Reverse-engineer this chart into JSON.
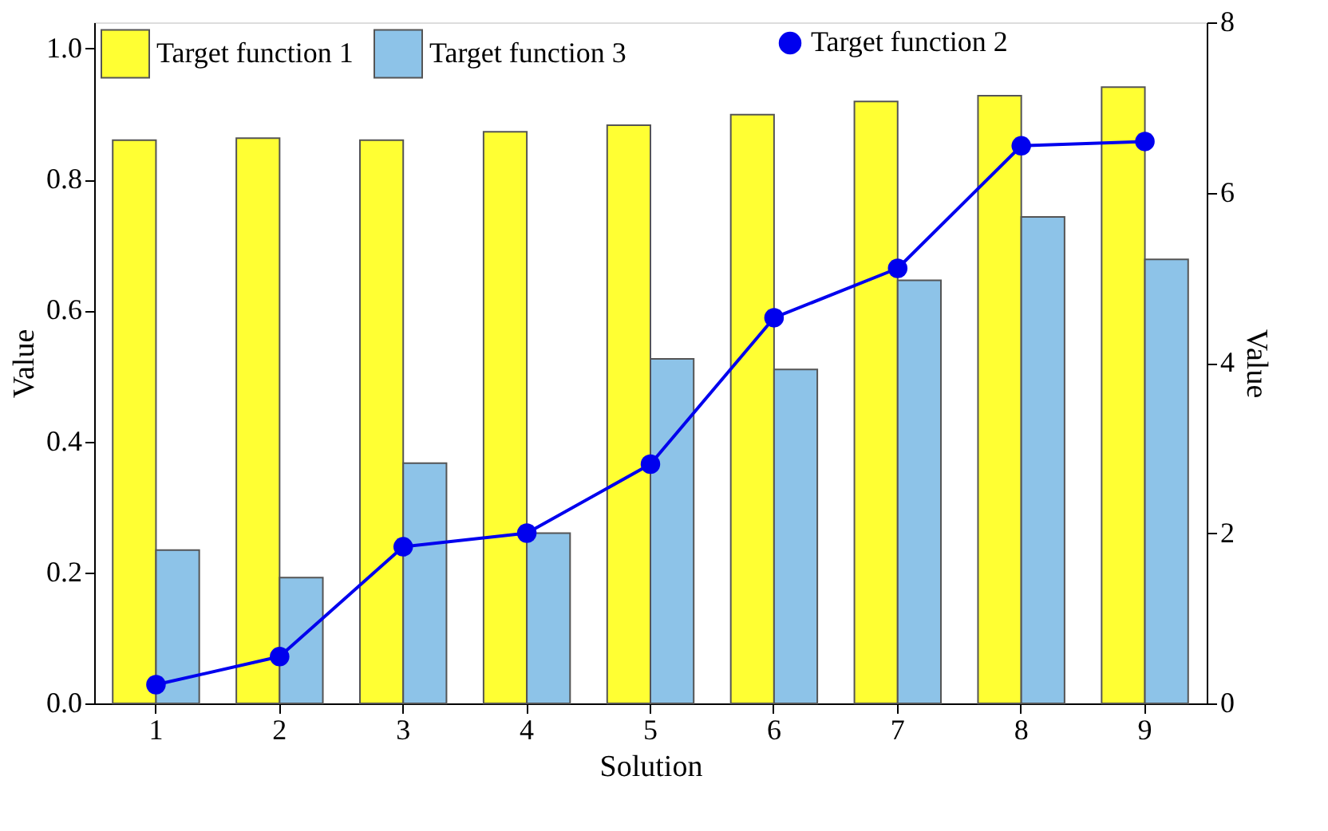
{
  "chart_data": {
    "type": "bar",
    "xlabel": "Solution",
    "ylabel": "Value",
    "y2label": "Value",
    "categories": [
      "1",
      "2",
      "3",
      "4",
      "5",
      "6",
      "7",
      "8",
      "9"
    ],
    "series": [
      {
        "name": "Target function 1",
        "color": "#ffff33",
        "values": [
          0.86,
          0.863,
          0.86,
          0.873,
          0.883,
          0.899,
          0.919,
          0.928,
          0.941
        ]
      },
      {
        "name": "Target function 3",
        "color": "#8dc3e8",
        "values": [
          0.234,
          0.192,
          0.367,
          0.26,
          0.526,
          0.51,
          0.646,
          0.743,
          0.678
        ]
      },
      {
        "name": "Target function 2",
        "type": "line",
        "axis": "y2",
        "color": "#0000ee",
        "values": [
          0.22,
          0.55,
          1.84,
          2.0,
          2.81,
          4.53,
          5.11,
          6.55,
          6.6
        ]
      }
    ],
    "ylim": [
      0,
      1.04
    ],
    "yticks": [
      {
        "value": 0,
        "label": "0.0"
      },
      0.2,
      0.4,
      0.6,
      0.8,
      {
        "value": 1,
        "label": "1.0"
      }
    ],
    "y2lim": [
      0,
      8
    ],
    "y2ticks": [
      0,
      2,
      4,
      6,
      8
    ],
    "marker": "circle",
    "line_style": "solid",
    "grid": false,
    "legend": "top"
  }
}
